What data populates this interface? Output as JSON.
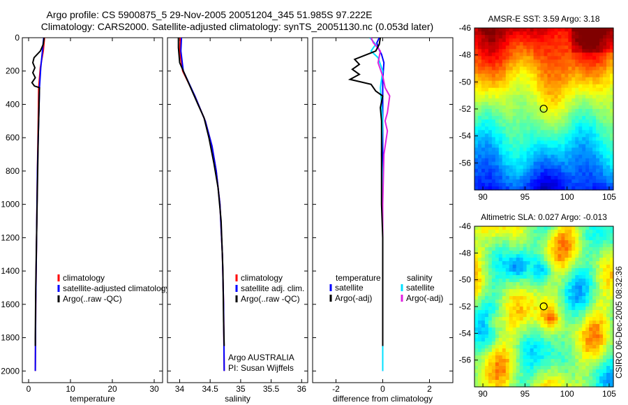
{
  "header": {
    "line1": "Argo profile: CS 5900875_5 29-Nov-2005 20051204_345 51.985S 97.222E",
    "line2": "Climatology: CARS2000. Satellite-adjusted climatology: synTS_20051130.nc (0.053d later)"
  },
  "side_label": "CSIRO 06-Dec-2005 08:32:36",
  "colors": {
    "red": "#ff0000",
    "blue": "#0000ff",
    "black": "#000000",
    "cyan": "#00e0ff",
    "magenta": "#e020e0"
  },
  "chart_data": [
    {
      "type": "line",
      "id": "temp",
      "xlabel": "temperature",
      "xlim": [
        -1.5,
        32
      ],
      "ylim": [
        0,
        2070
      ],
      "xticks": [
        0,
        10,
        20,
        30
      ],
      "xtick_labels": [
        "0",
        "10",
        "20",
        "30"
      ],
      "yticks": [
        0,
        200,
        400,
        600,
        800,
        1000,
        1200,
        1400,
        1600,
        1800,
        2000
      ],
      "ytick_labels": [
        "0",
        "200",
        "400",
        "600",
        "800",
        "1000",
        "1200",
        "1400",
        "1600",
        "1800",
        "2000"
      ],
      "legend": [
        {
          "label": "climatology",
          "color": "red"
        },
        {
          "label": "satellite-adjusted climatology",
          "color": "blue"
        },
        {
          "label": "Argo(..raw -QC)",
          "color": "black"
        }
      ],
      "series": [
        {
          "name": "climatology",
          "color": "red",
          "points": [
            [
              3.8,
              0
            ],
            [
              3.5,
              80
            ],
            [
              2.8,
              180
            ],
            [
              2.4,
              300
            ],
            [
              2.3,
              500
            ],
            [
              2.1,
              800
            ],
            [
              1.9,
              1200
            ],
            [
              1.7,
              1600
            ],
            [
              1.6,
              2000
            ]
          ]
        },
        {
          "name": "satellite-adjusted climatology",
          "color": "blue",
          "points": [
            [
              3.6,
              0
            ],
            [
              3.3,
              80
            ],
            [
              2.9,
              180
            ],
            [
              2.6,
              300
            ],
            [
              2.4,
              500
            ],
            [
              2.1,
              800
            ],
            [
              1.9,
              1200
            ],
            [
              1.7,
              1600
            ],
            [
              1.6,
              2000
            ]
          ]
        },
        {
          "name": "Argo",
          "color": "black",
          "points": [
            [
              3.7,
              0
            ],
            [
              3.5,
              40
            ],
            [
              2.8,
              80
            ],
            [
              1.3,
              120
            ],
            [
              1.0,
              150
            ],
            [
              1.5,
              180
            ],
            [
              1.0,
              210
            ],
            [
              1.6,
              240
            ],
            [
              0.8,
              270
            ],
            [
              1.4,
              290
            ],
            [
              2.6,
              300
            ],
            [
              2.5,
              400
            ],
            [
              2.3,
              600
            ],
            [
              2.1,
              900
            ],
            [
              1.9,
              1200
            ],
            [
              1.7,
              1500
            ],
            [
              1.6,
              1800
            ],
            [
              1.6,
              1850
            ]
          ]
        }
      ]
    },
    {
      "type": "line",
      "id": "sal",
      "xlabel": "salinity",
      "xlim": [
        33.8,
        36.1
      ],
      "ylim": [
        0,
        2070
      ],
      "xticks": [
        34,
        34.5,
        35,
        35.5,
        36
      ],
      "xtick_labels": [
        "34",
        "34.5",
        "35",
        "35.5",
        "36"
      ],
      "legend": [
        {
          "label": "climatology",
          "color": "red"
        },
        {
          "label": "satellite adj. clim.",
          "color": "blue"
        },
        {
          "label": "Argo(..raw -QC)",
          "color": "black"
        }
      ],
      "annotation": [
        "Argo AUSTRALIA",
        "PI: Susan Wijffels"
      ],
      "series": [
        {
          "name": "climatology",
          "color": "red",
          "points": [
            [
              34.01,
              0
            ],
            [
              34.0,
              80
            ],
            [
              34.05,
              200
            ],
            [
              34.25,
              350
            ],
            [
              34.42,
              500
            ],
            [
              34.53,
              650
            ],
            [
              34.6,
              800
            ],
            [
              34.66,
              1000
            ],
            [
              34.7,
              1300
            ],
            [
              34.72,
              1600
            ],
            [
              34.73,
              2000
            ]
          ]
        },
        {
          "name": "satellite adj. clim.",
          "color": "blue",
          "points": [
            [
              34.03,
              0
            ],
            [
              34.02,
              80
            ],
            [
              34.06,
              200
            ],
            [
              34.25,
              350
            ],
            [
              34.42,
              500
            ],
            [
              34.53,
              650
            ],
            [
              34.6,
              800
            ],
            [
              34.66,
              1000
            ],
            [
              34.7,
              1300
            ],
            [
              34.72,
              1600
            ],
            [
              34.73,
              2000
            ]
          ]
        },
        {
          "name": "Argo",
          "color": "black",
          "points": [
            [
              33.98,
              0
            ],
            [
              33.98,
              60
            ],
            [
              34.0,
              150
            ],
            [
              34.12,
              250
            ],
            [
              34.3,
              400
            ],
            [
              34.4,
              480
            ],
            [
              34.48,
              600
            ],
            [
              34.56,
              750
            ],
            [
              34.63,
              900
            ],
            [
              34.68,
              1100
            ],
            [
              34.71,
              1400
            ],
            [
              34.72,
              1700
            ],
            [
              34.73,
              1850
            ]
          ]
        }
      ]
    },
    {
      "type": "line",
      "id": "diff",
      "xlabel": "difference from climatology",
      "xlim": [
        -3,
        3
      ],
      "ylim": [
        0,
        2070
      ],
      "xticks": [
        -2,
        0,
        2
      ],
      "xtick_labels": [
        "-2",
        "0",
        "2"
      ],
      "legend_temperature": {
        "title": "temperature",
        "items": [
          {
            "label": "satellite",
            "color": "blue"
          },
          {
            "label": "Argo(-adj)",
            "color": "black"
          }
        ]
      },
      "legend_salinity": {
        "title": "salinity",
        "items": [
          {
            "label": "satellite",
            "color": "cyan"
          },
          {
            "label": "Argo(-adj)",
            "color": "magenta"
          }
        ]
      },
      "series": [
        {
          "name": "temp satellite",
          "color": "blue",
          "points": [
            [
              -0.15,
              0
            ],
            [
              -0.25,
              30
            ],
            [
              -0.2,
              60
            ],
            [
              -0.05,
              100
            ],
            [
              0.05,
              150
            ],
            [
              0.0,
              250
            ],
            [
              0.0,
              400
            ],
            [
              0.0,
              600
            ],
            [
              0.0,
              900
            ],
            [
              0.0,
              1200
            ],
            [
              0.0,
              1600
            ],
            [
              0.0,
              2000
            ]
          ]
        },
        {
          "name": "sal satellite",
          "color": "cyan",
          "points": [
            [
              -0.55,
              0
            ],
            [
              -0.3,
              40
            ],
            [
              -0.5,
              80
            ],
            [
              -0.2,
              120
            ],
            [
              0.0,
              200
            ],
            [
              -0.1,
              300
            ],
            [
              0.0,
              500
            ],
            [
              -0.05,
              700
            ],
            [
              0.0,
              900
            ],
            [
              0.0,
              1200
            ],
            [
              0.0,
              1600
            ],
            [
              0.0,
              2000
            ]
          ]
        },
        {
          "name": "sal Argo",
          "color": "magenta",
          "points": [
            [
              -0.5,
              0
            ],
            [
              -0.4,
              30
            ],
            [
              -0.1,
              80
            ],
            [
              -0.2,
              150
            ],
            [
              0.0,
              230
            ],
            [
              0.1,
              300
            ],
            [
              0.3,
              350
            ],
            [
              0.2,
              450
            ],
            [
              0.1,
              500
            ],
            [
              0.2,
              560
            ],
            [
              0.05,
              700
            ],
            [
              0.0,
              1000
            ],
            [
              0.0,
              1300
            ]
          ]
        },
        {
          "name": "temp Argo",
          "color": "black",
          "points": [
            [
              -0.1,
              0
            ],
            [
              -0.15,
              40
            ],
            [
              -0.3,
              80
            ],
            [
              -1.2,
              130
            ],
            [
              -1.0,
              160
            ],
            [
              -1.3,
              190
            ],
            [
              -1.0,
              220
            ],
            [
              -1.4,
              250
            ],
            [
              -0.5,
              280
            ],
            [
              -0.3,
              320
            ],
            [
              0.0,
              350
            ],
            [
              -0.1,
              420
            ],
            [
              -0.05,
              500
            ],
            [
              -0.05,
              700
            ],
            [
              -0.05,
              850
            ],
            [
              -0.05,
              1000
            ],
            [
              0.0,
              1200
            ],
            [
              0.0,
              1500
            ],
            [
              0.0,
              1850
            ]
          ]
        }
      ]
    },
    {
      "type": "heatmap",
      "id": "sst",
      "title": "AMSR-E SST: 3.59  Argo: 3.18",
      "xlim": [
        89,
        105.5
      ],
      "ylim": [
        -58,
        -46
      ],
      "xticks": [
        90,
        95,
        100,
        105
      ],
      "xtick_labels": [
        "90",
        "95",
        "100",
        "105"
      ],
      "yticks": [
        -46,
        -48,
        -50,
        -52,
        -54,
        -56
      ],
      "ytick_labels": [
        "-46",
        "-48",
        "-50",
        "-52",
        "-54",
        "-56"
      ],
      "marker": [
        97.222,
        -51.985
      ]
    },
    {
      "type": "heatmap",
      "id": "sla",
      "title": "Altimetric SLA: 0.027  Argo: -0.013",
      "xlim": [
        89,
        105.5
      ],
      "ylim": [
        -58,
        -46
      ],
      "xticks": [
        90,
        95,
        100,
        105
      ],
      "xtick_labels": [
        "90",
        "95",
        "100",
        "105"
      ],
      "yticks": [
        -46,
        -48,
        -50,
        -52,
        -54,
        -56
      ],
      "ytick_labels": [
        "-46",
        "-48",
        "-50",
        "-52",
        "-54",
        "-56"
      ],
      "marker": [
        97.222,
        -51.985
      ]
    }
  ]
}
